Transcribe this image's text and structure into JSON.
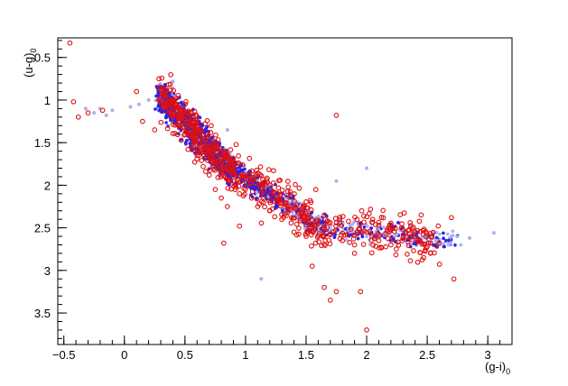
{
  "chart_data": {
    "type": "scatter",
    "title": "",
    "xlabel": "(g-i)",
    "xlabel_sub": "0",
    "ylabel": "(u-g)",
    "ylabel_sub": "0",
    "xlim": [
      -0.55,
      3.2
    ],
    "ylim": [
      3.87,
      0.27
    ],
    "y_inverted": true,
    "grid": false,
    "legend": "none",
    "x_major_ticks": [
      -0.5,
      0,
      0.5,
      1,
      1.5,
      2,
      2.5,
      3
    ],
    "x_tick_labels": [
      "−0.5",
      "0",
      "0.5",
      "1",
      "1.5",
      "2",
      "2.5",
      "3"
    ],
    "y_major_ticks": [
      0.5,
      1,
      1.5,
      2,
      2.5,
      3,
      3.5
    ],
    "y_tick_labels": [
      "0.5",
      "1",
      "1.5",
      "2",
      "2.5",
      "3",
      "3.5"
    ],
    "series": [
      {
        "marker": "filled-dot",
        "color": "#2a22e8",
        "color_light": "#aeb0f2",
        "description_hint": "dense blue/lavender point cloud following the stellar locus",
        "points": [
          [
            0.3,
            0.93
          ],
          [
            0.35,
            0.95
          ],
          [
            0.4,
            1.0
          ],
          [
            0.45,
            1.08
          ],
          [
            0.5,
            1.15
          ],
          [
            0.55,
            1.25
          ],
          [
            0.6,
            1.35
          ],
          [
            0.65,
            1.45
          ],
          [
            0.7,
            1.55
          ],
          [
            0.75,
            1.65
          ],
          [
            0.8,
            1.72
          ],
          [
            0.9,
            1.85
          ],
          [
            1.0,
            1.97
          ],
          [
            1.1,
            2.08
          ],
          [
            1.2,
            2.18
          ],
          [
            1.3,
            2.28
          ],
          [
            1.4,
            2.36
          ],
          [
            1.5,
            2.43
          ],
          [
            1.6,
            2.48
          ],
          [
            1.7,
            2.52
          ],
          [
            1.8,
            2.55
          ],
          [
            1.9,
            2.58
          ],
          [
            2.0,
            2.6
          ],
          [
            2.1,
            2.62
          ],
          [
            2.2,
            2.63
          ],
          [
            2.3,
            2.64
          ],
          [
            2.4,
            2.65
          ],
          [
            2.5,
            2.66
          ],
          [
            2.6,
            2.64
          ],
          [
            2.7,
            2.6
          ],
          [
            2.85,
            2.62
          ],
          [
            3.05,
            2.56
          ],
          [
            -0.32,
            1.1
          ],
          [
            -0.25,
            1.15
          ],
          [
            -0.2,
            1.1
          ],
          [
            -0.15,
            1.18
          ],
          [
            -0.1,
            1.12
          ],
          [
            0.05,
            1.08
          ],
          [
            0.12,
            1.05
          ],
          [
            0.2,
            1.0
          ],
          [
            1.13,
            3.1
          ],
          [
            2.0,
            1.8
          ],
          [
            0.4,
            0.78
          ],
          [
            0.85,
            1.35
          ],
          [
            1.75,
            1.95
          ]
        ]
      },
      {
        "marker": "open-circle",
        "color": "#e01010",
        "description_hint": "red open circles over the same locus, more scattered",
        "points": [
          [
            -0.45,
            0.33
          ],
          [
            -0.42,
            1.02
          ],
          [
            -0.38,
            1.2
          ],
          [
            -0.3,
            1.15
          ],
          [
            -0.18,
            1.12
          ],
          [
            0.1,
            0.9
          ],
          [
            0.15,
            1.25
          ],
          [
            0.25,
            1.35
          ],
          [
            0.3,
            0.88
          ],
          [
            0.35,
            1.05
          ],
          [
            0.4,
            1.2
          ],
          [
            0.45,
            1.3
          ],
          [
            0.5,
            1.4
          ],
          [
            0.55,
            1.55
          ],
          [
            0.6,
            1.65
          ],
          [
            0.65,
            1.78
          ],
          [
            0.7,
            1.88
          ],
          [
            0.75,
            2.05
          ],
          [
            0.8,
            2.15
          ],
          [
            0.85,
            2.25
          ],
          [
            0.9,
            1.95
          ],
          [
            0.95,
            2.1
          ],
          [
            1.0,
            2.05
          ],
          [
            1.05,
            2.15
          ],
          [
            1.1,
            2.25
          ],
          [
            1.2,
            2.3
          ],
          [
            1.3,
            2.4
          ],
          [
            1.4,
            2.55
          ],
          [
            1.5,
            2.6
          ],
          [
            1.6,
            2.45
          ],
          [
            1.7,
            2.58
          ],
          [
            1.75,
            1.18
          ],
          [
            1.8,
            2.65
          ],
          [
            1.9,
            2.7
          ],
          [
            2.0,
            2.55
          ],
          [
            2.1,
            2.65
          ],
          [
            2.2,
            2.7
          ],
          [
            2.3,
            2.62
          ],
          [
            2.4,
            2.6
          ],
          [
            2.45,
            2.35
          ],
          [
            2.5,
            2.72
          ],
          [
            2.6,
            2.68
          ],
          [
            2.7,
            2.38
          ],
          [
            2.72,
            3.1
          ],
          [
            0.82,
            2.68
          ],
          [
            1.55,
            2.95
          ],
          [
            1.65,
            3.2
          ],
          [
            1.7,
            3.35
          ],
          [
            1.75,
            3.25
          ],
          [
            1.95,
            3.25
          ],
          [
            2.0,
            3.7
          ],
          [
            1.9,
            2.8
          ],
          [
            2.05,
            2.4
          ],
          [
            1.58,
            2.05
          ],
          [
            0.95,
            2.48
          ]
        ]
      }
    ]
  }
}
